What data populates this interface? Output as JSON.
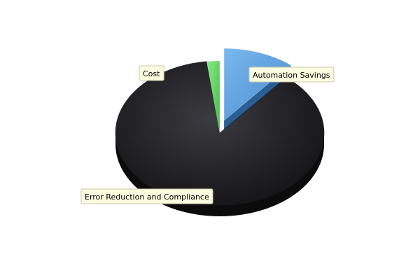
{
  "chart_data": {
    "type": "pie",
    "style": "3d-exploded",
    "title": "",
    "slices": [
      {
        "label": "Automation Savings",
        "value": 11,
        "color": "#5a9fdf",
        "exploded": true
      },
      {
        "label": "Error Reduction and Compliance",
        "value": 87,
        "color": "#232325",
        "exploded": false
      },
      {
        "label": "Cost",
        "value": 2,
        "color": "#5fd45f",
        "exploded": false
      }
    ],
    "legend": "none",
    "labels": "callout-boxes"
  }
}
